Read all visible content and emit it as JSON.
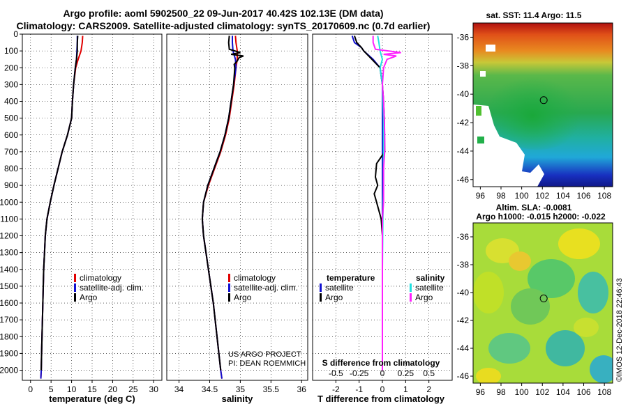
{
  "header": {
    "line1": "Argo profile: aoml 5902500_22 09-Jun-2017 40.42S 102.13E (DM data)",
    "line2": "Climatology: CARS2009. Satellite-adjusted climatology: synTS_20170609.nc (0.7d earlier)"
  },
  "colors": {
    "climatology": "#e00000",
    "satellite": "#1010d0",
    "argo": "#000000",
    "sal_satellite": "#20e0e0",
    "sal_argo": "#ff20ff"
  },
  "chart_data": [
    {
      "type": "line",
      "title": "temperature profile",
      "xlabel": "temperature (deg C)",
      "ylabel": "depth",
      "xlim": [
        -2,
        32
      ],
      "ylim": [
        2060,
        0
      ],
      "xticks": [
        0,
        5,
        10,
        15,
        20,
        25,
        30
      ],
      "yticks": [
        0,
        100,
        200,
        300,
        400,
        500,
        600,
        700,
        800,
        900,
        1000,
        1100,
        1200,
        1300,
        1400,
        1500,
        1600,
        1700,
        1800,
        1900,
        2000
      ],
      "legend": [
        "climatology",
        "satellite-adj. clim.",
        "Argo"
      ],
      "series": [
        {
          "name": "climatology",
          "color": "#e00000",
          "depth": [
            10,
            50,
            100,
            150,
            200,
            300,
            400,
            500,
            600,
            700,
            800,
            900,
            1000,
            1100,
            1200,
            1300,
            1400,
            1500,
            1600,
            1700,
            1800,
            1900,
            2000,
            2050
          ],
          "values": [
            12.7,
            12.6,
            12.3,
            11.6,
            11.0,
            10.5,
            10.2,
            10.0,
            9.0,
            7.7,
            6.7,
            5.7,
            4.8,
            4.0,
            3.6,
            3.4,
            3.2,
            3.1,
            3.0,
            2.9,
            2.8,
            2.7,
            2.6,
            2.5
          ]
        },
        {
          "name": "satellite-adj. clim.",
          "color": "#1010d0",
          "depth": [
            10,
            50,
            100,
            150,
            200,
            300,
            400,
            500,
            600,
            700,
            800,
            900,
            1000,
            1100,
            1200,
            1300,
            1400,
            1500,
            1600,
            1700,
            1800,
            1900,
            2000,
            2050
          ],
          "values": [
            11.4,
            11.4,
            11.3,
            11.2,
            10.9,
            10.5,
            10.2,
            10.0,
            9.0,
            7.7,
            6.7,
            5.7,
            4.8,
            4.0,
            3.6,
            3.4,
            3.2,
            3.1,
            3.0,
            2.9,
            2.8,
            2.7,
            2.6,
            2.5
          ]
        },
        {
          "name": "Argo",
          "color": "#000000",
          "depth": [
            10,
            50,
            100,
            150,
            200,
            300,
            400,
            500,
            600,
            700,
            800,
            900,
            1000,
            1100,
            1200,
            1300,
            1400,
            1500,
            1600,
            1700,
            1800,
            1900,
            2000
          ],
          "values": [
            11.5,
            11.4,
            11.4,
            11.2,
            10.9,
            10.5,
            10.2,
            10.0,
            9.0,
            7.7,
            6.7,
            5.7,
            4.8,
            4.0,
            3.6,
            3.4,
            3.2,
            3.1,
            3.0,
            2.9,
            2.8,
            2.7,
            2.6
          ]
        }
      ]
    },
    {
      "type": "line",
      "title": "salinity profile",
      "xlabel": "salinity",
      "ylabel": "depth",
      "xlim": [
        33.8,
        36.1
      ],
      "ylim": [
        2060,
        0
      ],
      "xticks": [
        34,
        34.5,
        35,
        35.5,
        36
      ],
      "yticks": [],
      "legend": [
        "climatology",
        "satellite-adj. clim.",
        "Argo"
      ],
      "annotation": [
        "US ARGO PROJECT",
        "PI: DEAN ROEMMICH"
      ],
      "series": [
        {
          "name": "climatology",
          "color": "#e00000",
          "depth": [
            10,
            50,
            100,
            150,
            200,
            300,
            400,
            500,
            600,
            700,
            800,
            900,
            1000,
            1100,
            1200,
            1400,
            1600,
            1800,
            2000,
            2050
          ],
          "values": [
            34.92,
            34.93,
            34.95,
            34.95,
            34.93,
            34.9,
            34.86,
            34.82,
            34.76,
            34.68,
            34.58,
            34.48,
            34.4,
            34.38,
            34.4,
            34.48,
            34.56,
            34.62,
            34.68,
            34.7
          ]
        },
        {
          "name": "satellite-adj. clim.",
          "color": "#1010d0",
          "depth": [
            10,
            50,
            100,
            150,
            200,
            300,
            400,
            500,
            600,
            700,
            800,
            900,
            1000,
            1100,
            1200,
            1400,
            1600,
            1800,
            2000,
            2050
          ],
          "values": [
            34.87,
            34.87,
            34.88,
            34.92,
            34.93,
            34.89,
            34.85,
            34.81,
            34.75,
            34.67,
            34.57,
            34.47,
            34.4,
            34.38,
            34.4,
            34.48,
            34.56,
            34.62,
            34.68,
            34.7
          ]
        },
        {
          "name": "Argo",
          "color": "#000000",
          "depth": [
            10,
            50,
            90,
            110,
            120,
            130,
            140,
            160,
            180,
            200,
            300,
            400,
            500,
            600,
            700,
            800,
            900,
            1000,
            1100,
            1200,
            1400,
            1600,
            1800,
            2000
          ],
          "values": [
            34.82,
            34.81,
            34.82,
            35.0,
            34.85,
            35.05,
            34.98,
            34.95,
            34.9,
            34.91,
            34.89,
            34.85,
            34.81,
            34.75,
            34.67,
            34.57,
            34.47,
            34.4,
            34.38,
            34.4,
            34.48,
            34.56,
            34.62,
            34.68
          ]
        }
      ]
    },
    {
      "type": "line",
      "title": "difference from climatology",
      "xlabel": "T difference from climatology",
      "xlabel_top": "S difference from climatology",
      "xlim": [
        -3,
        3
      ],
      "ylim": [
        2060,
        0
      ],
      "xticks": [
        -2,
        -1,
        0,
        1,
        2
      ],
      "xticks_top": [
        "-0.5",
        "-0.25",
        "0",
        "0.25",
        "0.5"
      ],
      "legend_left_title": "temperature",
      "legend_right_title": "salinity",
      "legend_left": [
        "satellite",
        "Argo"
      ],
      "legend_right": [
        "satellite",
        "Argo"
      ],
      "series": [
        {
          "name": "temperature satellite",
          "color": "#1010d0",
          "depth": [
            10,
            50,
            80,
            100,
            150,
            200,
            300,
            400,
            500,
            700,
            1000,
            1500,
            2000
          ],
          "values": [
            -1.3,
            -1.2,
            -0.9,
            -0.8,
            -0.4,
            -0.1,
            0,
            0,
            0,
            0,
            0,
            0,
            0
          ]
        },
        {
          "name": "temperature Argo",
          "color": "#000000",
          "depth": [
            10,
            50,
            80,
            100,
            150,
            200,
            300,
            400,
            500,
            700,
            770,
            850,
            900,
            950,
            1000,
            1050,
            1100,
            1200,
            1500,
            2000
          ],
          "values": [
            -1.2,
            -1.1,
            -0.9,
            -0.8,
            -0.45,
            -0.1,
            0.0,
            0.05,
            0.08,
            0.1,
            -0.25,
            -0.3,
            -0.2,
            -0.35,
            -0.25,
            -0.15,
            -0.05,
            0,
            0,
            0
          ]
        },
        {
          "name": "salinity satellite",
          "color": "#20e0e0",
          "depth": [
            10,
            50,
            100,
            150,
            200,
            300,
            500,
            700,
            900,
            1100,
            1400,
            2000
          ],
          "values": [
            -0.2,
            -0.15,
            -0.1,
            0,
            -0.1,
            0,
            0.05,
            0.05,
            0.05,
            0.02,
            0,
            0
          ]
        },
        {
          "name": "salinity Argo",
          "color": "#ff20ff",
          "depth": [
            10,
            50,
            90,
            110,
            120,
            130,
            150,
            200,
            300,
            400,
            500,
            600,
            700,
            800,
            900,
            1000,
            1100,
            1200,
            1400,
            2000
          ],
          "values": [
            -0.4,
            -0.4,
            -0.3,
            0.8,
            0.05,
            0.6,
            0.2,
            0.05,
            0,
            0.05,
            0.08,
            0.1,
            0.1,
            0.05,
            0.05,
            0.05,
            0,
            0,
            0,
            0
          ]
        }
      ]
    }
  ],
  "maps": {
    "sst": {
      "title": "sat. SST: 11.4 Argo: 11.5",
      "xticks": [
        "96",
        "98",
        "100",
        "102",
        "104",
        "106",
        "108"
      ],
      "yticks": [
        "-36",
        "-38",
        "-40",
        "-42",
        "-44",
        "-46"
      ],
      "float_lon": 102.13,
      "float_lat": -40.42
    },
    "sla": {
      "title1": "Altim. SLA: -0.0081",
      "title2": "Argo h1000: -0.015 h2000: -0.022",
      "xticks": [
        "96",
        "98",
        "100",
        "102",
        "104",
        "106",
        "108"
      ],
      "yticks": [
        "-36",
        "-38",
        "-40",
        "-42",
        "-44",
        "-46"
      ],
      "float_lon": 102.13,
      "float_lat": -40.42
    },
    "credit": "©IMOS 12-Dec-2018 22:46:43"
  }
}
